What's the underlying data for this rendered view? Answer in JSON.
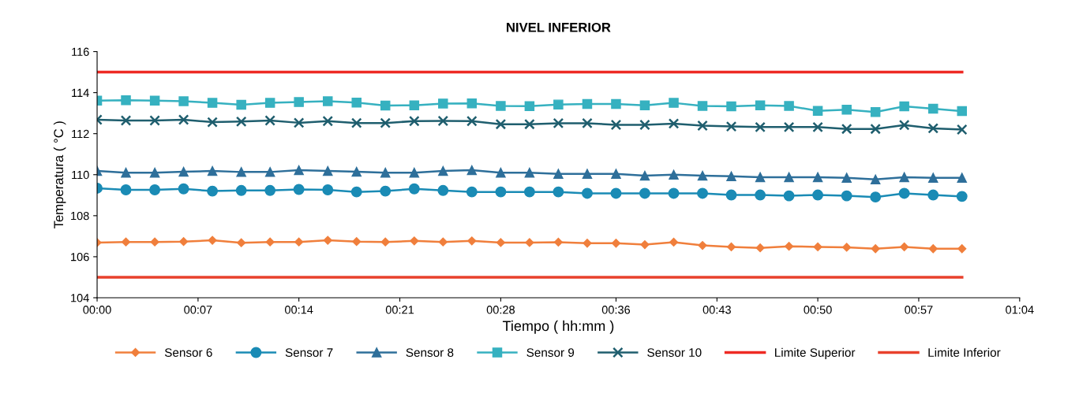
{
  "chart_data": {
    "type": "line",
    "title": "NIVEL INFERIOR",
    "xlabel": "Tiempo ( hh:mm )",
    "ylabel": "Temperatura ( °C )",
    "x": [
      0,
      0.0333,
      0.0667,
      0.1,
      0.1333,
      0.1667,
      0.2,
      0.2333,
      0.2667,
      0.3,
      0.3333,
      0.3667,
      0.4,
      0.4333,
      0.4667,
      0.5,
      0.5333,
      0.5667,
      0.6,
      0.6333,
      0.6667,
      0.7,
      0.7333,
      0.7667,
      0.8,
      0.8333,
      0.8667,
      0.9,
      0.9333,
      0.9667,
      1.0
    ],
    "series": [
      {
        "name": "Sensor 6",
        "color": "#f07f3c",
        "marker": "diamond",
        "values": [
          106.69,
          106.72,
          106.72,
          106.74,
          106.8,
          106.68,
          106.72,
          106.72,
          106.8,
          106.74,
          106.72,
          106.77,
          106.72,
          106.77,
          106.69,
          106.69,
          106.71,
          106.66,
          106.66,
          106.59,
          106.71,
          106.55,
          106.48,
          106.43,
          106.51,
          106.48,
          106.46,
          106.39,
          106.48,
          106.39,
          106.39
        ]
      },
      {
        "name": "Sensor 7",
        "color": "#1a8bb5",
        "marker": "circle",
        "values": [
          109.34,
          109.26,
          109.26,
          109.31,
          109.2,
          109.23,
          109.23,
          109.28,
          109.26,
          109.16,
          109.2,
          109.31,
          109.23,
          109.16,
          109.16,
          109.16,
          109.16,
          109.09,
          109.09,
          109.09,
          109.09,
          109.09,
          109.01,
          109.01,
          108.97,
          109.01,
          108.97,
          108.91,
          109.09,
          109.01,
          108.94
        ]
      },
      {
        "name": "Sensor 8",
        "color": "#2e6f9a",
        "marker": "triangle",
        "values": [
          110.18,
          110.1,
          110.1,
          110.14,
          110.18,
          110.13,
          110.13,
          110.22,
          110.18,
          110.14,
          110.1,
          110.1,
          110.18,
          110.22,
          110.1,
          110.1,
          110.04,
          110.04,
          110.04,
          109.95,
          110.0,
          109.95,
          109.92,
          109.88,
          109.88,
          109.88,
          109.85,
          109.77,
          109.88,
          109.85,
          109.85
        ]
      },
      {
        "name": "Sensor 9",
        "color": "#36b1c0",
        "marker": "square",
        "values": [
          113.61,
          113.63,
          113.61,
          113.58,
          113.5,
          113.41,
          113.5,
          113.54,
          113.58,
          113.51,
          113.37,
          113.38,
          113.47,
          113.48,
          113.35,
          113.34,
          113.42,
          113.45,
          113.45,
          113.38,
          113.5,
          113.35,
          113.33,
          113.38,
          113.35,
          113.11,
          113.17,
          113.05,
          113.33,
          113.22,
          113.1
        ]
      },
      {
        "name": "Sensor 10",
        "color": "#1f5e6e",
        "marker": "cross",
        "values": [
          112.68,
          112.64,
          112.64,
          112.68,
          112.56,
          112.59,
          112.64,
          112.53,
          112.61,
          112.52,
          112.52,
          112.61,
          112.62,
          112.61,
          112.46,
          112.46,
          112.51,
          112.51,
          112.43,
          112.43,
          112.49,
          112.39,
          112.35,
          112.32,
          112.32,
          112.32,
          112.23,
          112.23,
          112.42,
          112.26,
          112.2
        ]
      },
      {
        "name": "Limite Superior",
        "color": "#ee2a24",
        "marker": "none",
        "values": [
          115,
          115,
          115,
          115,
          115,
          115,
          115,
          115,
          115,
          115,
          115,
          115,
          115,
          115,
          115,
          115,
          115,
          115,
          115,
          115,
          115,
          115,
          115,
          115,
          115,
          115,
          115,
          115,
          115,
          115,
          115
        ]
      },
      {
        "name": "Limite Inferior",
        "color": "#e8412c",
        "marker": "none",
        "values": [
          105,
          105,
          105,
          105,
          105,
          105,
          105,
          105,
          105,
          105,
          105,
          105,
          105,
          105,
          105,
          105,
          105,
          105,
          105,
          105,
          105,
          105,
          105,
          105,
          105,
          105,
          105,
          105,
          105,
          105,
          105
        ]
      }
    ],
    "xlim": [
      0,
      1.0667
    ],
    "xticks": [
      {
        "value": 0,
        "label": "00:00"
      },
      {
        "value": 0.1167,
        "label": "00:07"
      },
      {
        "value": 0.2333,
        "label": "00:14"
      },
      {
        "value": 0.35,
        "label": "00:21"
      },
      {
        "value": 0.4667,
        "label": "00:28"
      },
      {
        "value": 0.6,
        "label": "00:36"
      },
      {
        "value": 0.7167,
        "label": "00:43"
      },
      {
        "value": 0.8333,
        "label": "00:50"
      },
      {
        "value": 0.95,
        "label": "00:57"
      },
      {
        "value": 1.0667,
        "label": "01:04"
      }
    ],
    "ylim": [
      104,
      116
    ],
    "yticks": [
      104,
      106,
      108,
      110,
      112,
      114,
      116
    ],
    "grid": false,
    "legend": "bottom",
    "line_style": "solid"
  }
}
